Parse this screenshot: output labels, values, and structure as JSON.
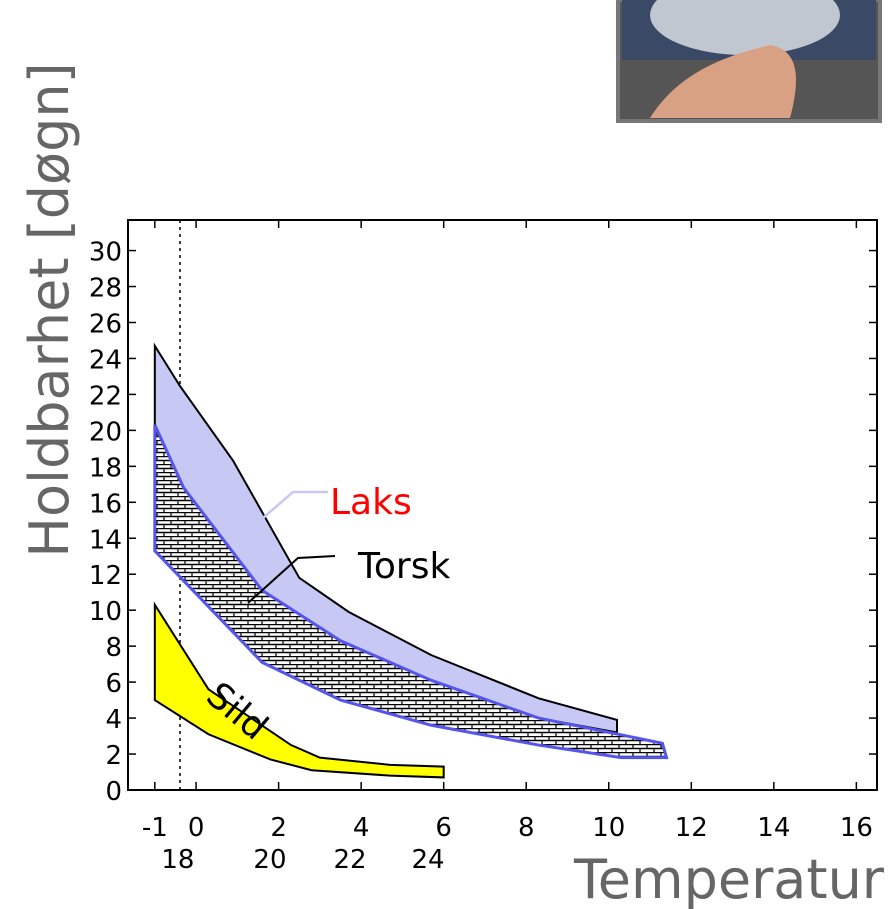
{
  "chart_data": {
    "type": "band",
    "ylabel": "Holdbarhet   [døgn]",
    "xlabel": "Temperatur",
    "xlim": [
      -1.65,
      16.5
    ],
    "ylim": [
      0,
      31.7
    ],
    "xticks": [
      -1,
      0,
      2,
      4,
      6,
      8,
      10,
      12,
      14,
      16
    ],
    "x2ticks": [
      {
        "value": -0.44,
        "label": "18"
      },
      {
        "value": 1.79,
        "label": "20"
      },
      {
        "value": 3.73,
        "label": "22"
      },
      {
        "value": 5.62,
        "label": "24"
      }
    ],
    "yticks": [
      0,
      2,
      4,
      6,
      8,
      10,
      12,
      14,
      16,
      18,
      20,
      22,
      24,
      26,
      28,
      30
    ],
    "reference_x": -0.39,
    "series": [
      {
        "name": "Laks",
        "color": "#c8c8f4",
        "label_color": "#ff0000",
        "upper": {
          "x": [
            -1,
            -0.4,
            0.9,
            2.5,
            3.7,
            5.7,
            8.3,
            10.2
          ],
          "y": [
            24.7,
            22.5,
            18.3,
            11.8,
            9.9,
            7.5,
            5.1,
            3.9
          ]
        },
        "lower": {
          "x": [
            -1,
            -0.3,
            1.6,
            3.5,
            5.7,
            8.3,
            10.2
          ],
          "y": [
            20.3,
            16.8,
            11.1,
            8.3,
            6.1,
            4.0,
            3.2
          ]
        }
      },
      {
        "name": "Torsk",
        "color": "#000000",
        "label_color": "#000000",
        "upper": {
          "x": [
            -1,
            -0.3,
            1.6,
            3.5,
            5.7,
            8.3,
            11.3
          ],
          "y": [
            20.3,
            16.8,
            11.1,
            8.3,
            6.1,
            4.0,
            2.6
          ]
        },
        "lower": {
          "x": [
            -1,
            1.6,
            3.5,
            5.7,
            8.3,
            10.3,
            11.4
          ],
          "y": [
            13.3,
            7.1,
            5.0,
            3.6,
            2.5,
            1.8,
            1.8
          ]
        }
      },
      {
        "name": "Sild",
        "color": "#ffff00",
        "label_color": "#000000",
        "upper": {
          "x": [
            -1,
            0.3,
            2.3,
            3.0,
            4.7,
            6.0
          ],
          "y": [
            10.3,
            5.6,
            2.5,
            1.8,
            1.4,
            1.3
          ]
        },
        "lower": {
          "x": [
            -1,
            0.3,
            1.8,
            2.8,
            4.7,
            6.0
          ],
          "y": [
            5.0,
            3.1,
            1.7,
            1.1,
            0.8,
            0.7
          ]
        }
      }
    ]
  }
}
